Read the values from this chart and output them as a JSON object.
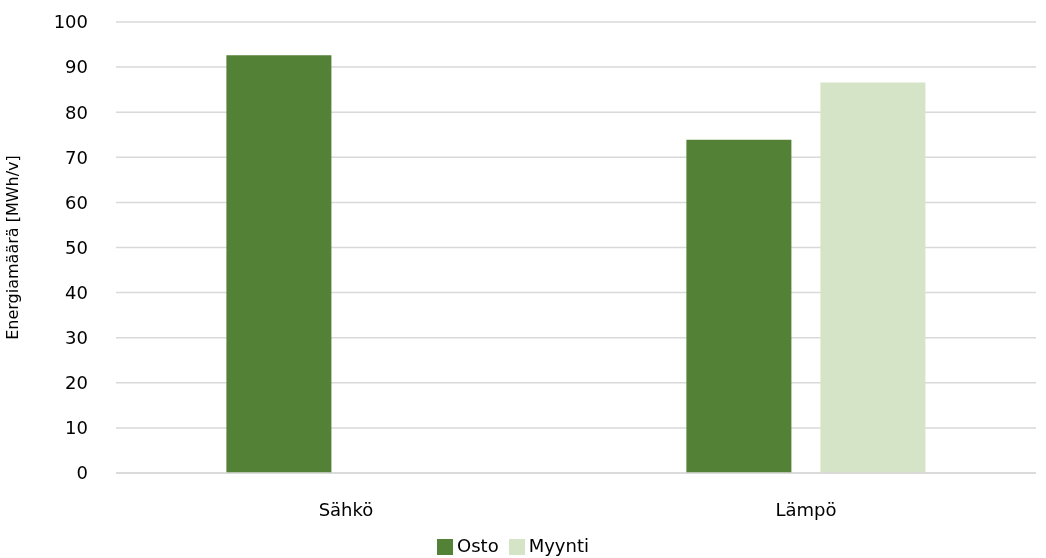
{
  "chart_data": {
    "type": "bar",
    "ylabel": "Energiamäärä [MWh/v]",
    "categories": [
      "Sähkö",
      "Lämpö"
    ],
    "series": [
      {
        "name": "Osto",
        "color": "#538135",
        "values": [
          92.6,
          73.9
        ]
      },
      {
        "name": "Myynti",
        "color": "#d5e3c6",
        "values": [
          null,
          86.6
        ]
      }
    ],
    "ylim": [
      0,
      100
    ],
    "yticks": [
      0,
      10,
      20,
      30,
      40,
      50,
      60,
      70,
      80,
      90,
      100
    ],
    "grid": "y",
    "legend": "bottom"
  }
}
